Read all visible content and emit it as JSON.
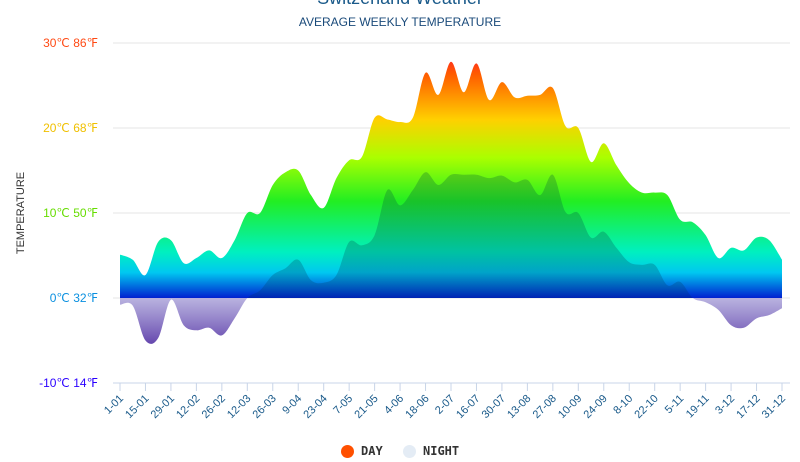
{
  "chart_data": {
    "type": "area",
    "title": "Switzerland Weather",
    "subtitle": "AVERAGE WEEKLY TEMPERATURE",
    "ylabel": "TEMPERATURE",
    "ylim": [
      -10,
      30
    ],
    "yticks": [
      {
        "value": 30,
        "label": "30℃ 86℉",
        "color": "#ff4a14"
      },
      {
        "value": 20,
        "label": "20℃ 68℉",
        "color": "#f0c000"
      },
      {
        "value": 10,
        "label": "10℃ 50℉",
        "color": "#66dd00"
      },
      {
        "value": 0,
        "label": "0℃ 32℉",
        "color": "#0a90e0"
      },
      {
        "value": -10,
        "label": "-10℃ 14℉",
        "color": "#2a00ff"
      }
    ],
    "xtick_labels": [
      "1-01",
      "15-01",
      "29-01",
      "12-02",
      "26-02",
      "12-03",
      "26-03",
      "9-04",
      "23-04",
      "7-05",
      "21-05",
      "4-06",
      "18-06",
      "2-07",
      "16-07",
      "30-07",
      "13-08",
      "27-08",
      "10-09",
      "24-09",
      "8-10",
      "22-10",
      "5-11",
      "19-11",
      "3-12",
      "17-12",
      "31-12"
    ],
    "grid": true,
    "legend_position": "bottom",
    "series": [
      {
        "name": "DAY",
        "color": "#ff5000",
        "values": [
          5.1,
          4.5,
          2.7,
          6.6,
          6.8,
          4.1,
          4.7,
          5.6,
          4.7,
          6.8,
          10,
          10,
          13.3,
          14.8,
          15,
          12.1,
          10.6,
          14.1,
          16.2,
          16.6,
          21.2,
          21,
          20.7,
          21.2,
          26.5,
          23.9,
          27.8,
          24.2,
          27.6,
          23.3,
          25.4,
          23.6,
          23.8,
          23.9,
          24.7,
          20.2,
          20,
          16,
          18.2,
          15.6,
          13.5,
          12.4,
          12.4,
          12.1,
          9.2,
          8.9,
          7.4,
          4.7,
          5.9,
          5.6,
          7.1,
          6.8,
          4.5
        ]
      },
      {
        "name": "NIGHT",
        "color": "#e4ecf5",
        "values": [
          -0.8,
          -0.9,
          -5,
          -4.7,
          -0.2,
          -3.2,
          -3.8,
          -3.5,
          -4.4,
          -2.4,
          0,
          0.9,
          2.7,
          3.5,
          4.5,
          2.1,
          1.8,
          2.7,
          6.6,
          6.2,
          7.4,
          12.7,
          10.9,
          12.7,
          14.8,
          13.3,
          14.5,
          14.5,
          14.5,
          14.1,
          14.4,
          13.6,
          13.9,
          12.1,
          14.5,
          10.1,
          10,
          7.1,
          7.8,
          5.9,
          4.2,
          3.9,
          3.9,
          1.5,
          1.9,
          0,
          -0.5,
          -1.4,
          -3.2,
          -3.5,
          -2.4,
          -2,
          -1.2
        ]
      }
    ]
  }
}
